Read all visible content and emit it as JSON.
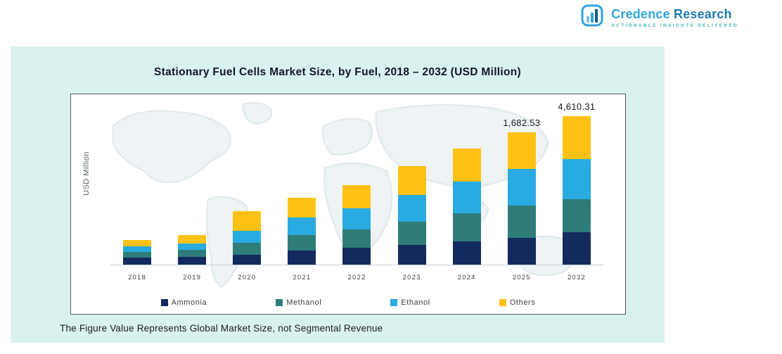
{
  "logo": {
    "brand_primary": "Credence",
    "brand_secondary": "Research",
    "tagline": "Actionable Insights Delivered"
  },
  "chart_data": {
    "type": "bar",
    "stacked": true,
    "title": "Stationary Fuel Cells Market Size, by Fuel, 2018 – 2032 (USD Million)",
    "ylabel": "USD Million",
    "xlabel": "",
    "categories": [
      "2018",
      "2019",
      "2020",
      "2021",
      "2022",
      "2023",
      "2024",
      "2025",
      "2032"
    ],
    "series": [
      {
        "name": "Ammonia",
        "color": "#132a5e",
        "values": [
          10,
          11,
          14,
          20,
          24,
          28,
          33,
          38,
          46
        ]
      },
      {
        "name": "Methanol",
        "color": "#2f7d79",
        "values": [
          8,
          10,
          17,
          22,
          26,
          33,
          40,
          46,
          47
        ]
      },
      {
        "name": "Ethanol",
        "color": "#29abe2",
        "values": [
          8,
          9,
          17,
          25,
          30,
          38,
          45,
          52,
          57
        ]
      },
      {
        "name": "Others",
        "color": "#ffc214",
        "values": [
          9,
          12,
          28,
          28,
          33,
          41,
          47,
          52,
          61
        ]
      }
    ],
    "values_unit": "relative-height",
    "data_labels": [
      {
        "category": "2025",
        "text": "1,682.53"
      },
      {
        "category": "2032",
        "text": "4,610.31"
      }
    ],
    "legend_position": "bottom",
    "grid": false,
    "value_axis_ticks_visible": false
  },
  "footer_note": "The Figure Value Represents Global Market Size, not Segmental Revenue"
}
